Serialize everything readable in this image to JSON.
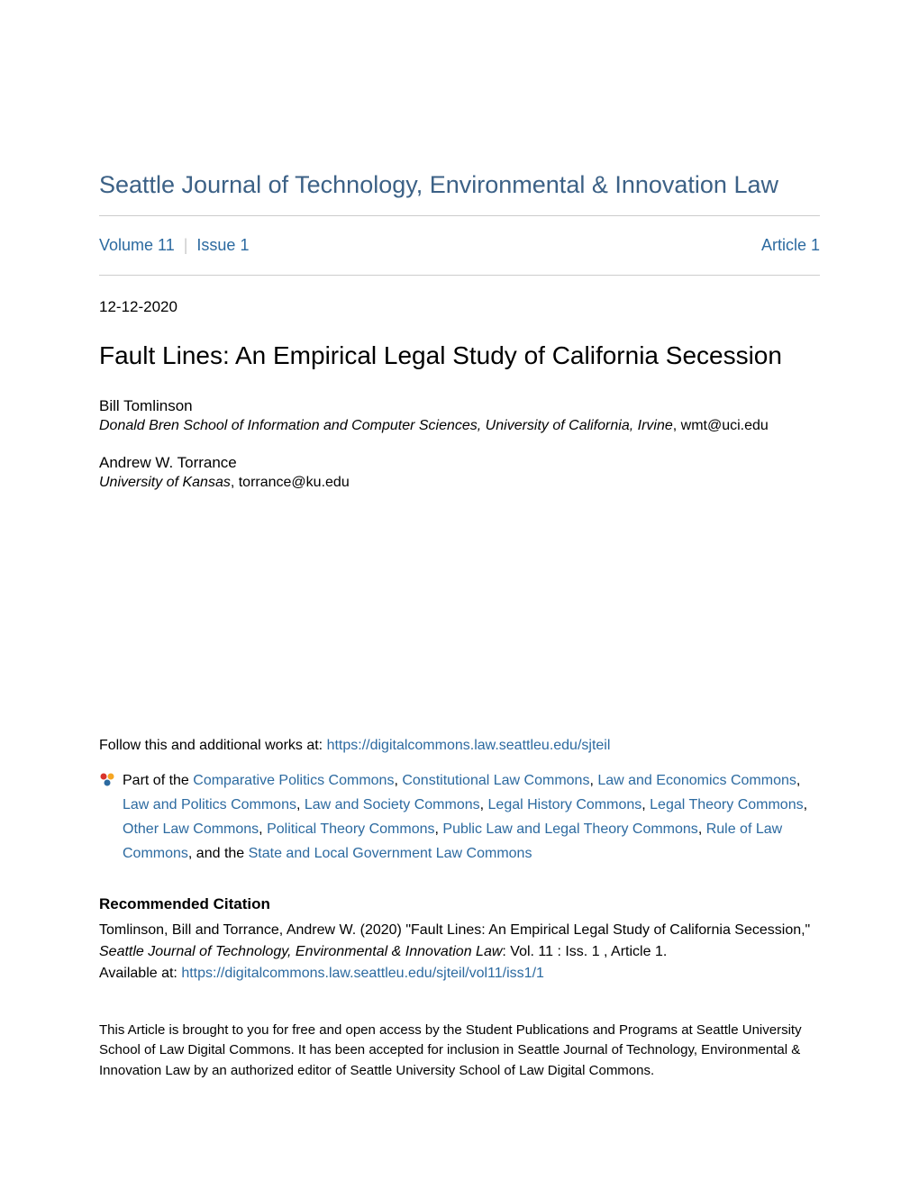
{
  "journal_title": "Seattle Journal of Technology, Environmental & Innovation Law",
  "nav": {
    "volume_label": "Volume 11",
    "issue_label": "Issue 1",
    "article_label": "Article 1"
  },
  "date": "12-12-2020",
  "article_title": "Fault Lines: An Empirical Legal Study of California Secession",
  "authors": [
    {
      "name": "Bill Tomlinson",
      "affiliation": "Donald Bren School of Information and Computer Sciences, University of California, Irvine",
      "email": "wmt@uci.edu"
    },
    {
      "name": "Andrew W. Torrance",
      "affiliation": "University of Kansas",
      "email": "torrance@ku.edu"
    }
  ],
  "follow": {
    "prefix": "Follow this and additional works at: ",
    "url": "https://digitalcommons.law.seattleu.edu/sjteil"
  },
  "commons": {
    "prefix": "Part of the ",
    "items": [
      "Comparative Politics Commons",
      "Constitutional Law Commons",
      "Law and Economics Commons",
      "Law and Politics Commons",
      "Law and Society Commons",
      "Legal History Commons",
      "Legal Theory Commons",
      "Other Law Commons",
      "Political Theory Commons",
      "Public Law and Legal Theory Commons",
      "Rule of Law Commons"
    ],
    "last_connector": ", and the ",
    "last_item": "State and Local Government Law Commons"
  },
  "citation": {
    "heading": "Recommended Citation",
    "text_before_journal": "Tomlinson, Bill and Torrance, Andrew W. (2020) \"Fault Lines: An Empirical Legal Study of California Secession,\" ",
    "journal_italic": "Seattle Journal of Technology, Environmental & Innovation Law",
    "text_after_journal": ": Vol. 11 : Iss. 1 , Article 1.",
    "available_prefix": "Available at: ",
    "available_url": "https://digitalcommons.law.seattleu.edu/sjteil/vol11/iss1/1"
  },
  "access_statement": "This Article is brought to you for free and open access by the Student Publications and Programs at Seattle University School of Law Digital Commons. It has been accepted for inclusion in Seattle Journal of Technology, Environmental & Innovation Law by an authorized editor of Seattle University School of Law Digital Commons.",
  "colors": {
    "link": "#2c6aa0",
    "journal_heading": "#3c6186",
    "divider": "#cccccc",
    "text": "#000000",
    "background": "#ffffff"
  },
  "typography": {
    "journal_title_size": 27,
    "article_title_size": 28,
    "body_size": 16,
    "small_size": 15
  }
}
